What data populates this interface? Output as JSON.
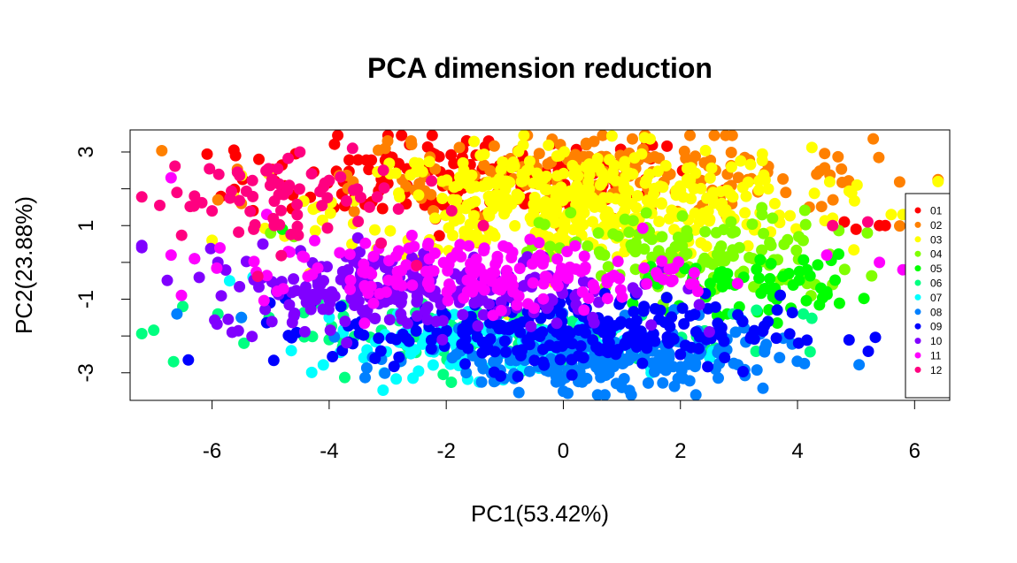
{
  "chart_data": {
    "type": "scatter",
    "title": "PCA dimension reduction",
    "xlabel": "PC1(53.42%)",
    "ylabel": "PC2(23.88%)",
    "xlim": [
      -7.4,
      6.6
    ],
    "ylim": [
      -3.75,
      3.6
    ],
    "xticks": [
      -6,
      -4,
      -2,
      0,
      2,
      4,
      6
    ],
    "yticks": [
      -3,
      -2,
      -1,
      0,
      1,
      2,
      3
    ],
    "ytick_labels": [
      "-3",
      "",
      "-1",
      "",
      "1",
      "",
      "3"
    ],
    "grid": false,
    "legend_position": "right",
    "series": [
      {
        "name": "01",
        "color": "#FF0000",
        "cx": -1.5,
        "cy": 2.3,
        "sx": 2.0,
        "sy": 0.6,
        "n": 170,
        "points": [
          [
            -5.6,
            2.9
          ],
          [
            -5.2,
            2.8
          ],
          [
            4.8,
            1.1
          ],
          [
            5.0,
            0.9
          ],
          [
            5.4,
            1.0
          ],
          [
            5.5,
            1.0
          ]
        ]
      },
      {
        "name": "02",
        "color": "#FF8000",
        "cx": 0.8,
        "cy": 2.4,
        "sx": 2.2,
        "sy": 0.55,
        "n": 190,
        "points": [
          [
            -5.9,
            1.7
          ],
          [
            -5.5,
            1.6
          ],
          [
            -3.0,
            3.3
          ],
          [
            -2.6,
            3.3
          ],
          [
            3.8,
            1.9
          ],
          [
            4.2,
            1.5
          ]
        ]
      },
      {
        "name": "03",
        "color": "#FFFF00",
        "cx": 0.2,
        "cy": 1.6,
        "sx": 2.0,
        "sy": 0.75,
        "n": 420,
        "points": [
          [
            -4.2,
            1.5
          ],
          [
            -6.0,
            0.6
          ],
          [
            3.5,
            2.0
          ],
          [
            4.6,
            1.2
          ],
          [
            5.6,
            1.3
          ],
          [
            5.8,
            1.3
          ]
        ]
      },
      {
        "name": "04",
        "color": "#80FF00",
        "cx": 2.3,
        "cy": 0.2,
        "sx": 1.3,
        "sy": 0.6,
        "n": 130,
        "points": [
          [
            -5.0,
            0.8
          ],
          [
            -4.6,
            0.7
          ],
          [
            0.6,
            0.8
          ],
          [
            4.3,
            -0.6
          ],
          [
            4.6,
            -0.6
          ]
        ]
      },
      {
        "name": "05",
        "color": "#00FF00",
        "cx": 3.2,
        "cy": -0.6,
        "sx": 0.9,
        "sy": 0.4,
        "n": 60,
        "points": [
          [
            -4.8,
            0.9
          ],
          [
            4.4,
            -0.7
          ],
          [
            4.5,
            -0.8
          ],
          [
            2.8,
            -1.4
          ]
        ]
      },
      {
        "name": "06",
        "color": "#00FF80",
        "cx": -1.0,
        "cy": -2.0,
        "sx": 2.0,
        "sy": 0.4,
        "n": 120,
        "points": [
          [
            -6.5,
            -1.2
          ],
          [
            -5.9,
            -1.4
          ],
          [
            -5.5,
            -1.5
          ],
          [
            -5.0,
            -1.6
          ],
          [
            -4.0,
            -2.1
          ],
          [
            2.9,
            -1.4
          ],
          [
            3.3,
            -1.3
          ],
          [
            4.1,
            -1.4
          ]
        ]
      },
      {
        "name": "07",
        "color": "#00FFFF",
        "cx": -1.3,
        "cy": -2.3,
        "sx": 1.4,
        "sy": 0.4,
        "n": 130,
        "points": [
          [
            -5.7,
            -0.5
          ],
          [
            -5.3,
            -0.4
          ],
          [
            -4.0,
            -1.5
          ],
          [
            1.5,
            -3.0
          ]
        ]
      },
      {
        "name": "08",
        "color": "#0080FF",
        "cx": 0.6,
        "cy": -2.6,
        "sx": 1.5,
        "sy": 0.45,
        "n": 230,
        "points": [
          [
            -6.6,
            -1.4
          ],
          [
            -5.5,
            -1.5
          ],
          [
            0.0,
            -3.5
          ],
          [
            1.0,
            -3.4
          ],
          [
            2.6,
            -2.9
          ]
        ]
      },
      {
        "name": "09",
        "color": "#0000FF",
        "cx": -0.1,
        "cy": -1.9,
        "sx": 1.9,
        "sy": 0.5,
        "n": 250,
        "points": [
          [
            -4.3,
            -1.1
          ],
          [
            -3.8,
            -1.2
          ],
          [
            2.0,
            -2.5
          ],
          [
            2.7,
            -2.0
          ]
        ]
      },
      {
        "name": "10",
        "color": "#8000FF",
        "cx": -2.6,
        "cy": -0.7,
        "sx": 1.8,
        "sy": 0.55,
        "n": 260,
        "points": [
          [
            -7.2,
            0.4
          ],
          [
            -6.3,
            0.1
          ],
          [
            -5.9,
            0.0
          ],
          [
            0.5,
            -1.5
          ],
          [
            1.5,
            -1.7
          ]
        ]
      },
      {
        "name": "11",
        "color": "#FF00FF",
        "cx": -1.5,
        "cy": -0.3,
        "sx": 1.8,
        "sy": 0.45,
        "n": 180,
        "points": [
          [
            -6.7,
            2.3
          ],
          [
            -6.7,
            0.2
          ],
          [
            -6.3,
            0.1
          ],
          [
            5.4,
            0.0
          ],
          [
            5.8,
            -0.2
          ],
          [
            6.0,
            -0.4
          ],
          [
            4.5,
            0.2
          ]
        ]
      },
      {
        "name": "12",
        "color": "#FF0080",
        "cx": -5.0,
        "cy": 1.7,
        "sx": 1.1,
        "sy": 0.7,
        "n": 70,
        "points": [
          [
            -6.6,
            1.9
          ],
          [
            -6.3,
            1.8
          ],
          [
            -6.0,
            1.4
          ],
          [
            -3.6,
            3.1
          ],
          [
            -4.5,
            3.0
          ],
          [
            4.6,
            1.0
          ],
          [
            5.2,
            1.1
          ]
        ]
      }
    ]
  }
}
